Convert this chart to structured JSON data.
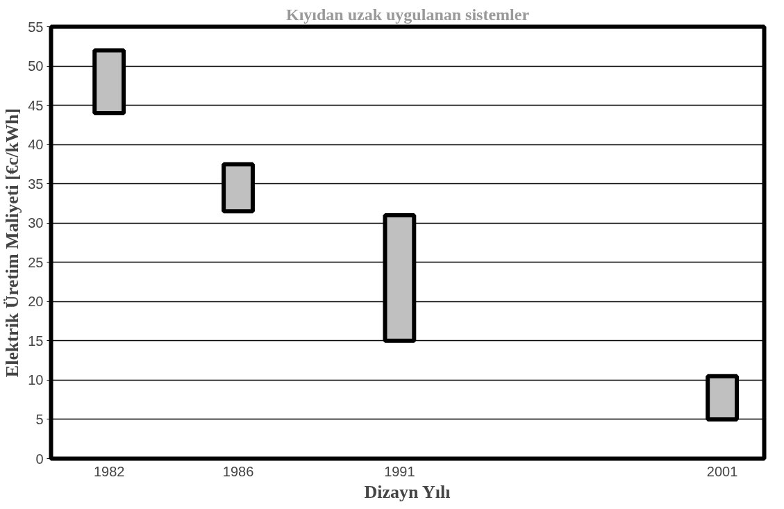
{
  "chart_data": {
    "type": "bar",
    "title": "Kıyıdan uzak uygulanan sistemler",
    "xlabel": "Dizayn Yılı",
    "ylabel": "Elektrik Üretim Maliyeti [€c/kWh]",
    "x": [
      1982,
      1986,
      1991,
      2001
    ],
    "base": [
      44,
      31.5,
      15,
      5
    ],
    "values": [
      8,
      6,
      16,
      5.5
    ],
    "color": "#c0c0c0",
    "xlim": [
      1980.2,
      2002.3
    ],
    "xticks": [
      1982,
      1986,
      1991,
      2001
    ],
    "ylim": [
      0,
      55
    ],
    "yticks": [
      0,
      5,
      10,
      15,
      20,
      25,
      30,
      35,
      40,
      45,
      50,
      55
    ],
    "grid": "y"
  }
}
